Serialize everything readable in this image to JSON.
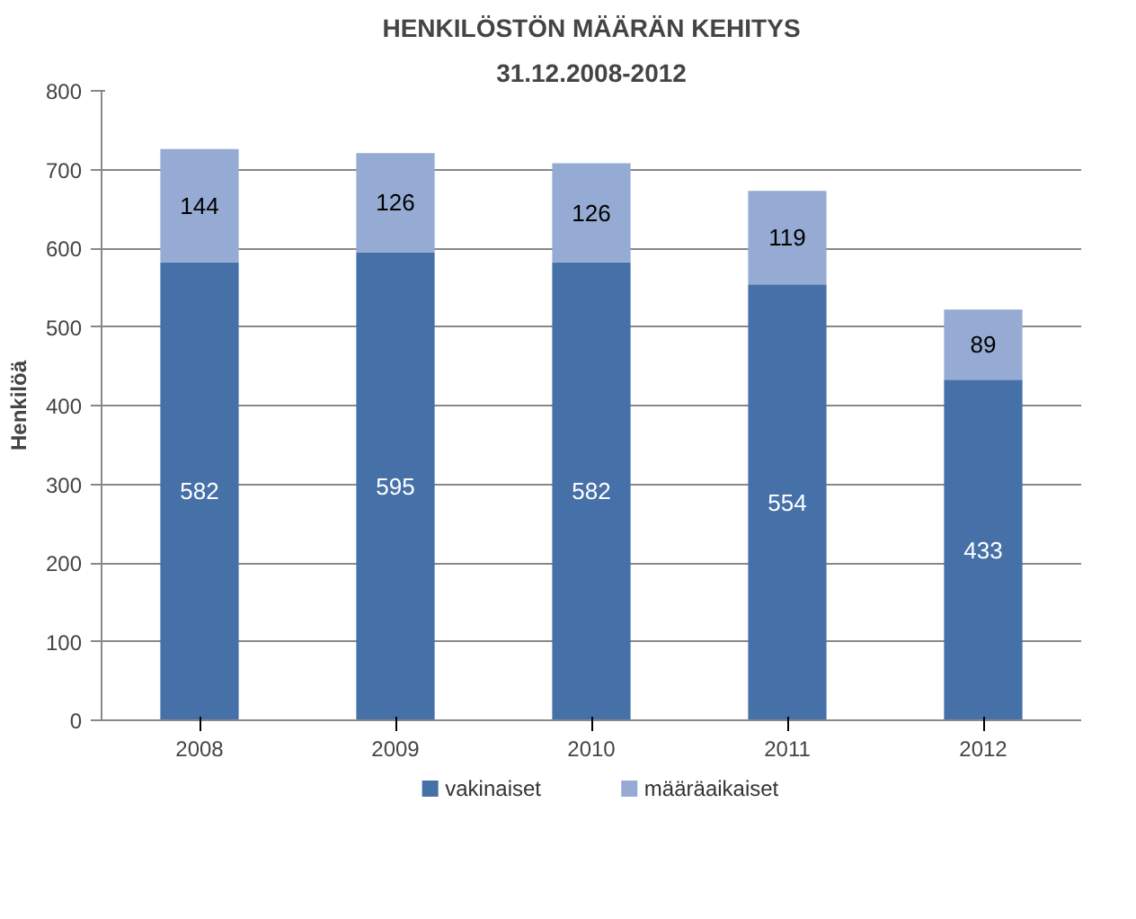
{
  "chart_data": {
    "type": "bar",
    "title": "HENKILÖSTÖN MÄÄRÄN KEHITYS",
    "subtitle": "31.12.2008-2012",
    "ylabel": "Henkilöä",
    "categories": [
      "2008",
      "2009",
      "2010",
      "2011",
      "2012"
    ],
    "series": [
      {
        "name": "vakinaiset",
        "color": "#4670a8",
        "values": [
          582,
          595,
          582,
          554,
          433
        ]
      },
      {
        "name": "määräaikaiset",
        "color": "#95abd3",
        "values": [
          144,
          126,
          126,
          119,
          89
        ]
      }
    ],
    "stacked": true,
    "data_labels": true,
    "ylim": [
      0,
      800
    ],
    "yticks": [
      0,
      100,
      200,
      300,
      400,
      500,
      600,
      700,
      800
    ],
    "grid": "y",
    "legend": "bottom"
  }
}
